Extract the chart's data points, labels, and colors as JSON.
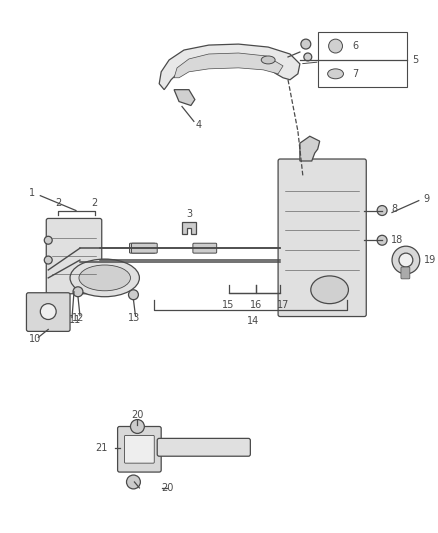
{
  "bg_color": "#ffffff",
  "lc": "#4a4a4a",
  "tc": "#4a4a4a",
  "fig_w": 4.38,
  "fig_h": 5.33,
  "dpi": 100
}
